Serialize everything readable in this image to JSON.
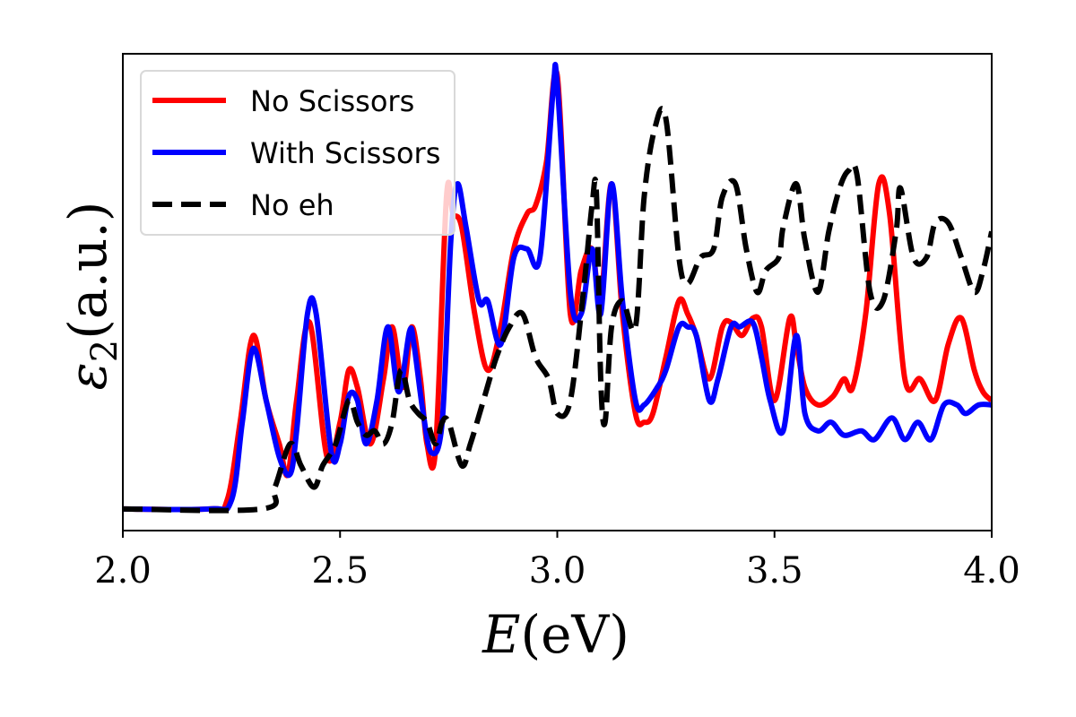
{
  "chart_data": {
    "type": "line",
    "xlabel": {
      "var": "E",
      "unit": "(eV)"
    },
    "ylabel": {
      "var": "ε",
      "sub": "2",
      "unit": "(a.u.)"
    },
    "xlim": [
      2.0,
      4.0
    ],
    "ylim": [
      -0.05,
      1.05
    ],
    "xticks": [
      2.0,
      2.5,
      3.0,
      3.5,
      4.0
    ],
    "xtick_labels": [
      "2.0",
      "2.5",
      "3.0",
      "3.5",
      "4.0"
    ],
    "yticks_shown": false,
    "grid": false,
    "legend_position": "top-left",
    "series": [
      {
        "name": "No Scissors",
        "color": "#ff0000",
        "dash": "solid",
        "x": [
          2.0,
          2.2,
          2.24,
          2.27,
          2.3,
          2.33,
          2.36,
          2.38,
          2.4,
          2.43,
          2.47,
          2.5,
          2.52,
          2.54,
          2.57,
          2.6,
          2.62,
          2.645,
          2.665,
          2.685,
          2.7,
          2.72,
          2.745,
          2.76,
          2.78,
          2.81,
          2.84,
          2.87,
          2.9,
          2.93,
          2.95,
          2.975,
          3.0,
          3.03,
          3.055,
          3.08,
          3.1,
          3.125,
          3.15,
          3.18,
          3.2,
          3.22,
          3.25,
          3.28,
          3.3,
          3.32,
          3.35,
          3.38,
          3.4,
          3.425,
          3.45,
          3.47,
          3.5,
          3.535,
          3.55,
          3.57,
          3.6,
          3.635,
          3.66,
          3.68,
          3.71,
          3.74,
          3.765,
          3.8,
          3.835,
          3.87,
          3.9,
          3.93,
          3.96,
          3.98,
          4.0
        ],
        "values": [
          0.0,
          0.0,
          0.02,
          0.2,
          0.4,
          0.25,
          0.15,
          0.08,
          0.25,
          0.43,
          0.12,
          0.2,
          0.32,
          0.28,
          0.15,
          0.3,
          0.42,
          0.28,
          0.42,
          0.3,
          0.15,
          0.14,
          0.72,
          0.68,
          0.65,
          0.45,
          0.32,
          0.42,
          0.6,
          0.68,
          0.7,
          0.8,
          1.0,
          0.45,
          0.55,
          0.6,
          0.48,
          0.75,
          0.45,
          0.22,
          0.2,
          0.22,
          0.35,
          0.48,
          0.45,
          0.4,
          0.3,
          0.42,
          0.43,
          0.4,
          0.44,
          0.42,
          0.25,
          0.44,
          0.38,
          0.28,
          0.24,
          0.26,
          0.3,
          0.28,
          0.45,
          0.75,
          0.68,
          0.3,
          0.3,
          0.25,
          0.38,
          0.44,
          0.32,
          0.27,
          0.25
        ]
      },
      {
        "name": "With Scissors",
        "color": "#0000ff",
        "dash": "solid",
        "x": [
          2.0,
          2.2,
          2.25,
          2.275,
          2.3,
          2.33,
          2.36,
          2.385,
          2.4,
          2.425,
          2.445,
          2.48,
          2.5,
          2.52,
          2.54,
          2.56,
          2.585,
          2.61,
          2.635,
          2.66,
          2.67,
          2.69,
          2.71,
          2.735,
          2.755,
          2.77,
          2.79,
          2.82,
          2.84,
          2.87,
          2.9,
          2.93,
          2.96,
          2.99,
          3.0,
          3.03,
          3.055,
          3.08,
          3.1,
          3.125,
          3.15,
          3.18,
          3.2,
          3.23,
          3.25,
          3.28,
          3.3,
          3.32,
          3.35,
          3.37,
          3.4,
          3.42,
          3.45,
          3.47,
          3.49,
          3.52,
          3.55,
          3.57,
          3.6,
          3.63,
          3.66,
          3.7,
          3.73,
          3.77,
          3.8,
          3.83,
          3.86,
          3.89,
          3.92,
          3.94,
          3.97,
          4.0
        ],
        "values": [
          0.0,
          0.0,
          0.02,
          0.2,
          0.37,
          0.25,
          0.12,
          0.08,
          0.18,
          0.45,
          0.45,
          0.13,
          0.15,
          0.26,
          0.25,
          0.15,
          0.25,
          0.42,
          0.27,
          0.41,
          0.38,
          0.23,
          0.13,
          0.2,
          0.62,
          0.75,
          0.65,
          0.48,
          0.48,
          0.38,
          0.58,
          0.6,
          0.58,
          0.96,
          0.98,
          0.5,
          0.45,
          0.6,
          0.45,
          0.75,
          0.48,
          0.25,
          0.24,
          0.28,
          0.32,
          0.42,
          0.42,
          0.4,
          0.25,
          0.3,
          0.42,
          0.42,
          0.43,
          0.35,
          0.25,
          0.18,
          0.4,
          0.22,
          0.18,
          0.2,
          0.17,
          0.18,
          0.16,
          0.21,
          0.16,
          0.2,
          0.16,
          0.24,
          0.24,
          0.22,
          0.24,
          0.24
        ]
      },
      {
        "name": "No eh",
        "color": "#000000",
        "dash": "dashed",
        "x": [
          2.0,
          2.32,
          2.35,
          2.385,
          2.41,
          2.44,
          2.46,
          2.49,
          2.52,
          2.54,
          2.56,
          2.58,
          2.6,
          2.62,
          2.64,
          2.66,
          2.68,
          2.7,
          2.72,
          2.735,
          2.75,
          2.78,
          2.8,
          2.83,
          2.86,
          2.89,
          2.92,
          2.95,
          2.98,
          3.0,
          3.03,
          3.06,
          3.08,
          3.09,
          3.1,
          3.11,
          3.125,
          3.15,
          3.18,
          3.2,
          3.225,
          3.25,
          3.28,
          3.3,
          3.33,
          3.36,
          3.38,
          3.41,
          3.435,
          3.46,
          3.48,
          3.51,
          3.52,
          3.55,
          3.57,
          3.6,
          3.625,
          3.65,
          3.67,
          3.69,
          3.72,
          3.75,
          3.78,
          3.79,
          3.82,
          3.85,
          3.87,
          3.9,
          3.93,
          3.96,
          3.98,
          4.0
        ],
        "values": [
          0.0,
          0.0,
          0.05,
          0.15,
          0.1,
          0.05,
          0.1,
          0.15,
          0.25,
          0.2,
          0.17,
          0.18,
          0.15,
          0.2,
          0.32,
          0.25,
          0.22,
          0.2,
          0.15,
          0.2,
          0.2,
          0.1,
          0.15,
          0.25,
          0.35,
          0.42,
          0.45,
          0.35,
          0.3,
          0.22,
          0.25,
          0.5,
          0.7,
          0.73,
          0.3,
          0.2,
          0.42,
          0.48,
          0.42,
          0.72,
          0.88,
          0.9,
          0.58,
          0.52,
          0.58,
          0.6,
          0.72,
          0.75,
          0.6,
          0.5,
          0.55,
          0.58,
          0.65,
          0.75,
          0.62,
          0.5,
          0.64,
          0.74,
          0.78,
          0.77,
          0.5,
          0.48,
          0.64,
          0.74,
          0.58,
          0.58,
          0.66,
          0.66,
          0.58,
          0.5,
          0.55,
          0.64
        ]
      }
    ]
  }
}
